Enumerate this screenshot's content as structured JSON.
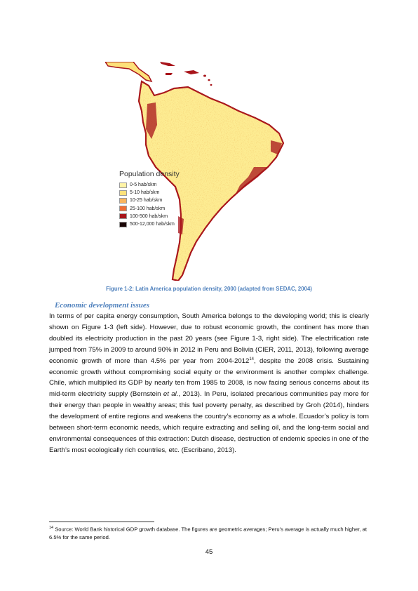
{
  "figure": {
    "map_icon": "latin-america-population-density-map",
    "legend": {
      "title": "Population density",
      "items": [
        {
          "label": "0-5 hab/skm",
          "color": "#fff3a6"
        },
        {
          "label": "5-10 hab/skm",
          "color": "#fde17a"
        },
        {
          "label": "10-25 hab/skm",
          "color": "#f9b45e"
        },
        {
          "label": "25-100 hab/skm",
          "color": "#ef6d34"
        },
        {
          "label": "100-500 hab/skm",
          "color": "#a8141a"
        },
        {
          "label": "500-12,000 hab/skm",
          "color": "#1a0505"
        }
      ]
    },
    "caption": "Figure 1-2: Latin America population density, 2000 (adapted from SEDAC, 2004)"
  },
  "section": {
    "heading": "Economic development issues",
    "paragraph": {
      "part1": "In terms of per capita energy consumption, South America belongs to the developing world; this is clearly shown on Figure 1-3 (left side). However, due to robust economic growth, the continent has more than doubled its electricity production in the past 20 years (see Figure 1-3, right side). The electrification rate jumped from 75% in 2009 to around 90% in 2012 in Peru and Bolivia (CIER, 2011, 2013), following average economic growth of more than 4.5% per year from 2004-2012",
      "footnote_ref": "14",
      "part2": ", despite the 2008 crisis. Sustaining economic growth without compromising social equity or the environment is another complex challenge. Chile, which multiplied its GDP by nearly ten from 1985 to 2008, is now facing serious concerns about its mid-term electricity supply (Bernstein ",
      "et_al": "et al.",
      "part3": ", 2013). In Peru, isolated precarious communities pay more for their energy than people in wealthy areas; this fuel poverty penalty, as described by Groh (2014), hinders the development of entire regions and weakens the country’s economy as a whole. Ecuador’s policy is torn between short-term economic needs, which require extracting and selling oil, and the long-term social and environmental consequences of this extraction: Dutch disease, destruction of endemic species in one of the Earth’s most ecologically rich countries, etc. (Escribano, 2013)."
    }
  },
  "footnote": {
    "number": "14",
    "text": " Source: World Bank historical GDP growth database. The figures are geometric averages; Peru’s average is actually much higher, at 6.5% for the same period."
  },
  "page_number": "45"
}
